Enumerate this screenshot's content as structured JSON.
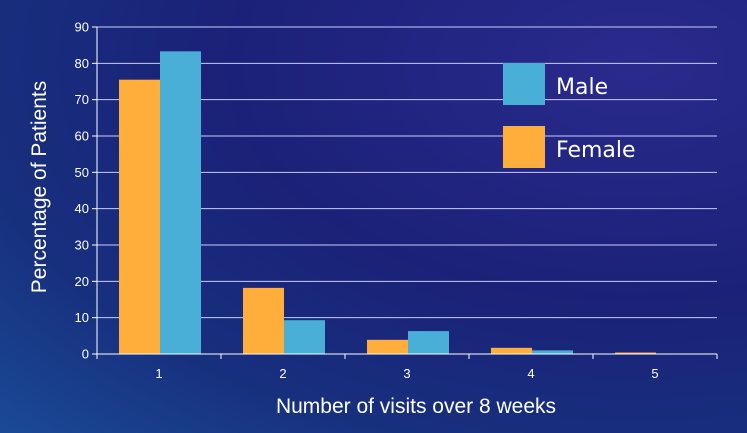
{
  "chart_data": {
    "type": "bar",
    "categories": [
      "1",
      "2",
      "3",
      "4",
      "5"
    ],
    "series": [
      {
        "name": "Female",
        "color": "#ffad3b",
        "values": [
          75.5,
          18.2,
          3.9,
          1.7,
          0.4
        ]
      },
      {
        "name": "Male",
        "color": "#4aafd7",
        "values": [
          83.3,
          9.3,
          6.3,
          1.0,
          0.0
        ]
      }
    ],
    "legend_order": [
      "Male",
      "Female"
    ],
    "legend_position": "top-right",
    "xlabel": "Number of visits over 8 weeks",
    "ylabel": "Percentage of Patients",
    "ylim": [
      0,
      90
    ],
    "yticks": [
      "0",
      "10",
      "20",
      "30",
      "40",
      "50",
      "60",
      "70",
      "80",
      "90"
    ],
    "grid": true,
    "colors": {
      "background": "#1b2178",
      "gridline": "#c8ccff",
      "axis": "#ffffff",
      "text": "#ffffff"
    }
  }
}
